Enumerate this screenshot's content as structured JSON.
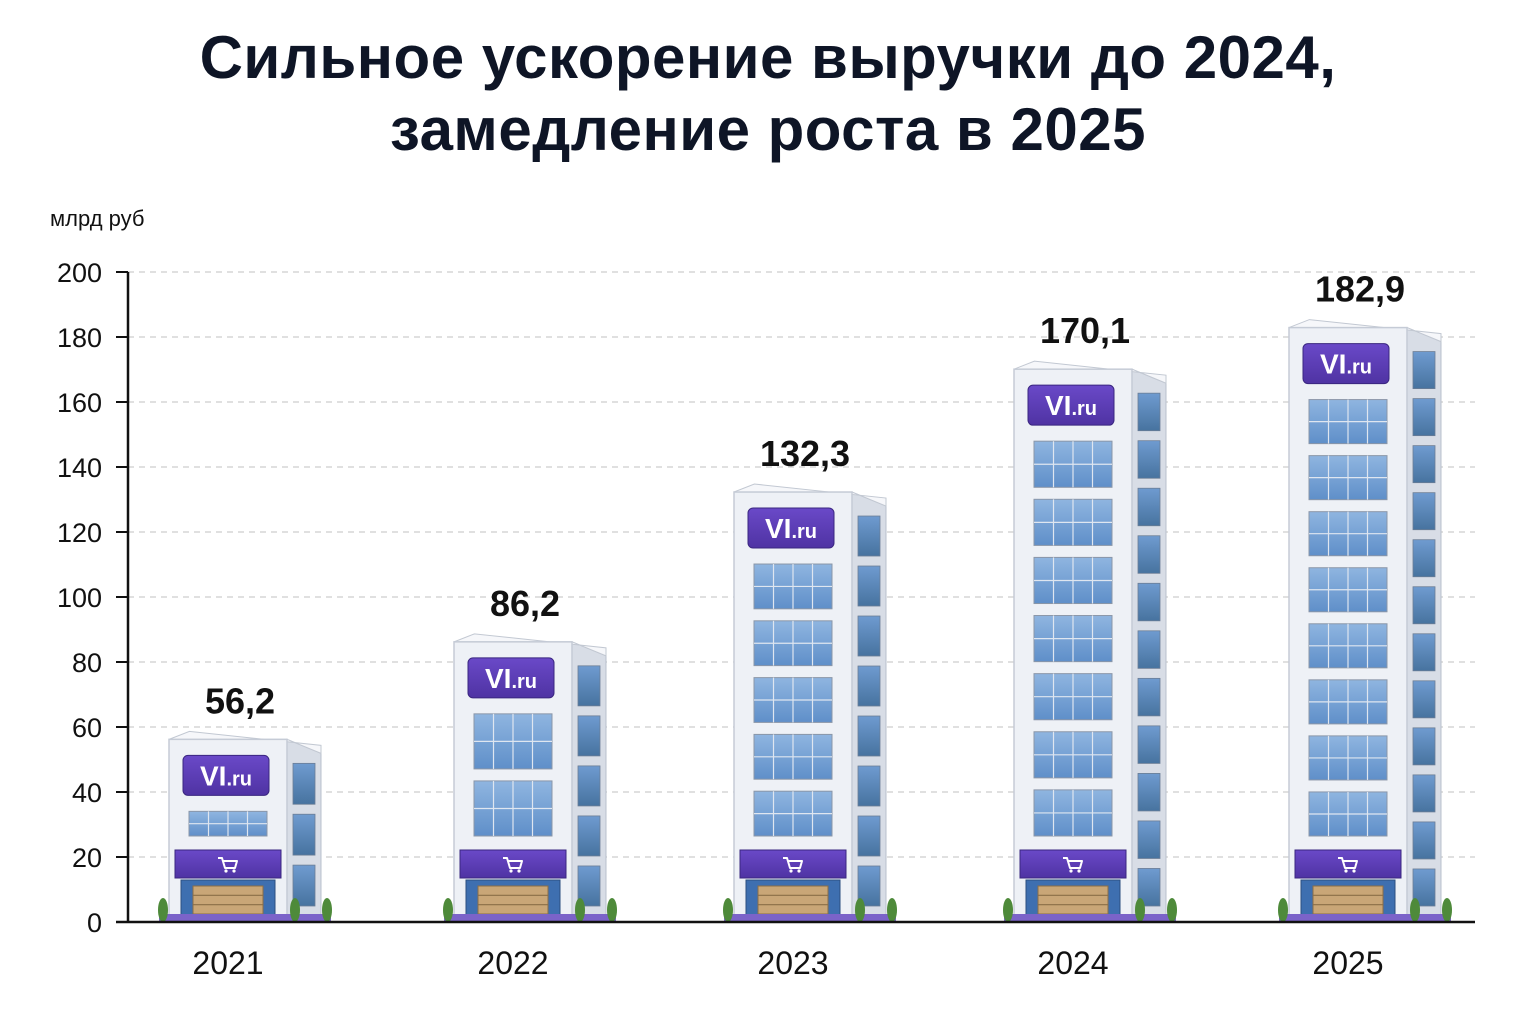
{
  "chart_data": {
    "type": "bar",
    "title_line1": "Сильное ускорение выручки до 2024,",
    "title_line2": "замедление роста в 2025",
    "ylabel": "млрд руб",
    "xlabel": "",
    "categories": [
      "2021",
      "2022",
      "2023",
      "2024",
      "2025"
    ],
    "values": [
      56.2,
      86.2,
      132.3,
      170.1,
      182.9
    ],
    "value_labels": [
      "56,2",
      "86,2",
      "132,3",
      "170,1",
      "182,9"
    ],
    "ylim": [
      0,
      200
    ],
    "yticks": [
      0,
      20,
      40,
      60,
      80,
      100,
      120,
      140,
      160,
      180,
      200
    ],
    "grid": true,
    "bar_style": "office-building",
    "sign_text_main": "VI",
    "sign_text_suffix": ".ru",
    "storefront_icon": "shopping-cart-icon",
    "colors": {
      "brand_purple": "#6a49c8",
      "brand_purple_dark": "#4f33a3",
      "glass_blue": "#8fb5e0",
      "glass_blue_dark": "#5f8fc9",
      "facade": "#eef1f6",
      "facade_side": "#d8dde6",
      "axis": "#111111",
      "grid": "#d6d6d6"
    }
  }
}
